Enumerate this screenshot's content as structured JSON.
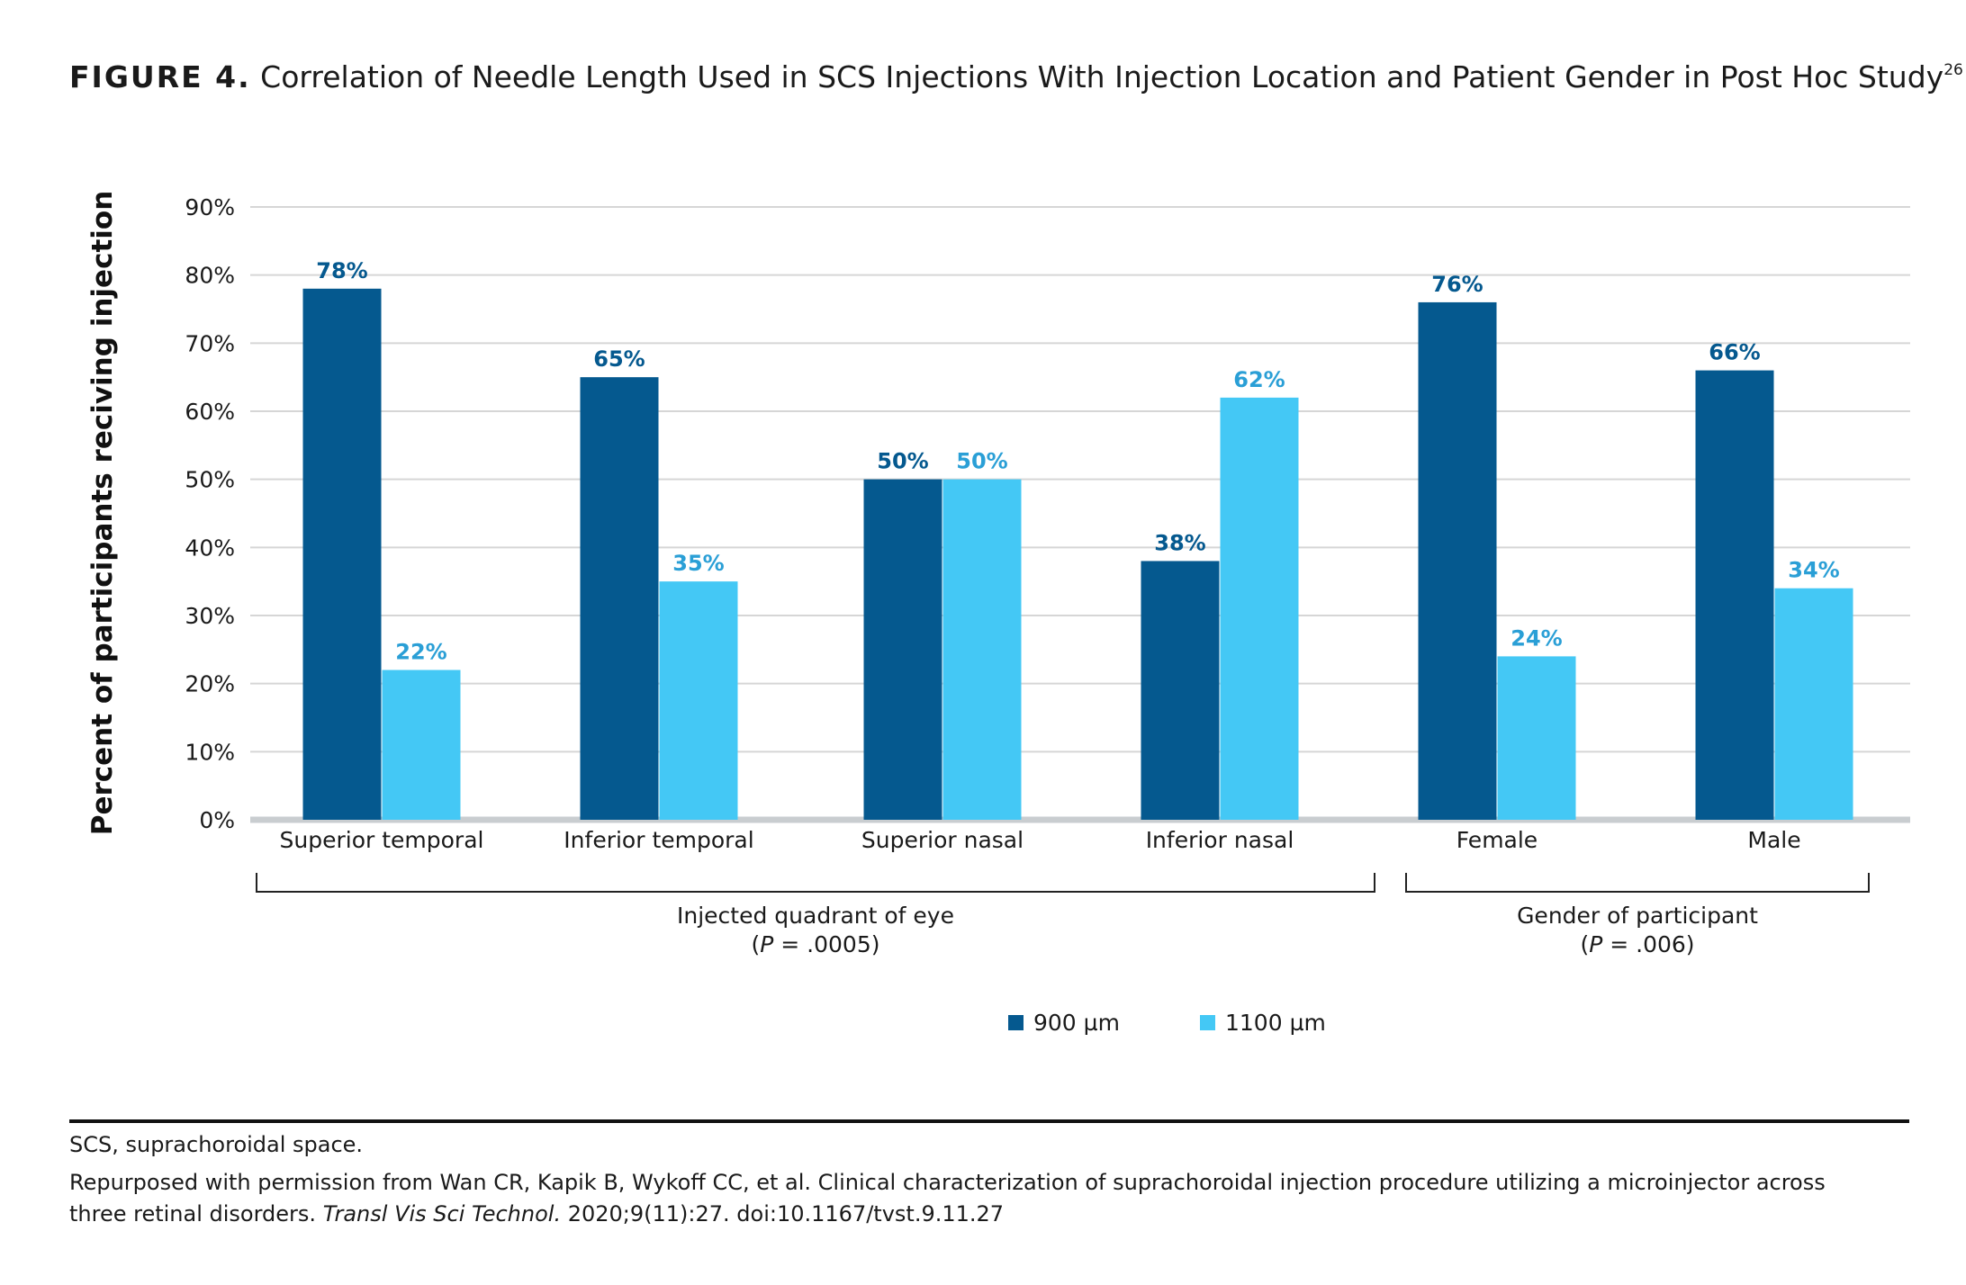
{
  "figure": {
    "label": "FIGURE 4.",
    "title": "Correlation of Needle Length Used in SCS Injections With Injection Location and Patient Gender in Post Hoc Study",
    "superscript": "26"
  },
  "colors": {
    "series_900": "#05598f",
    "series_1100": "#44c8f5",
    "grid": "#d6d6d6",
    "baseline": "#c9cdd0"
  },
  "chart_data": {
    "type": "bar",
    "ylabel": "Percent of participants reciving injection",
    "xlabel": "",
    "ylim": [
      0,
      90
    ],
    "yticks": [
      "0%",
      "10%",
      "20%",
      "30%",
      "40%",
      "50%",
      "60%",
      "70%",
      "80%",
      "90%"
    ],
    "categories": [
      "Superior temporal",
      "Inferior temporal",
      "Superior nasal",
      "Inferior nasal",
      "Female",
      "Male"
    ],
    "series": [
      {
        "name": "900 µm",
        "values": [
          78,
          65,
          50,
          38,
          76,
          66
        ],
        "labels": [
          "78%",
          "65%",
          "50%",
          "38%",
          "76%",
          "66%"
        ]
      },
      {
        "name": "1100 µm",
        "values": [
          22,
          35,
          50,
          62,
          24,
          34
        ],
        "labels": [
          "22%",
          "35%",
          "50%",
          "62%",
          "24%",
          "34%"
        ]
      }
    ],
    "groups": [
      {
        "name": "Injected quadrant of eye",
        "pvalue_prefix": "(",
        "pvalue_letter": "P",
        "pvalue_rest": " = .0005)"
      },
      {
        "name": "Gender of participant",
        "pvalue_prefix": "(",
        "pvalue_letter": "P",
        "pvalue_rest": " = .006)"
      }
    ],
    "legend": [
      "900 µm",
      "1100 µm"
    ]
  },
  "notes": {
    "abbrev": "SCS, suprachoroidal space.",
    "citation_line1": "Repurposed with permission from Wan CR, Kapik B, Wykoff CC, et al. Clinical characterization of suprachoroidal injection procedure utilizing a microinjector across",
    "citation_line2_start": "three retinal disorders. ",
    "citation_journal": "Transl Vis Sci Technol.",
    "citation_line2_end": " 2020;9(11):27. doi:10.1167/tvst.9.11.27"
  }
}
